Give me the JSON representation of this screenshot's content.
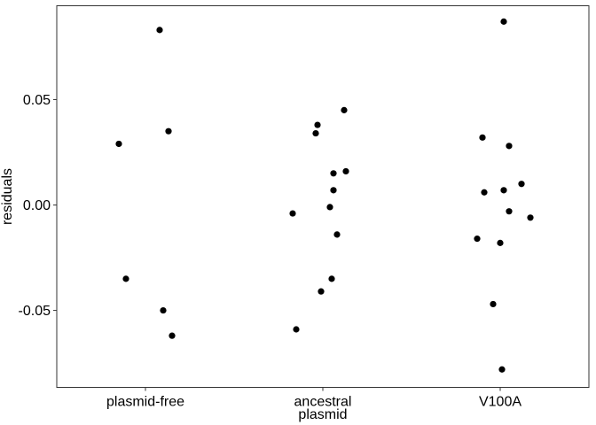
{
  "chart_data": {
    "type": "scatter",
    "xlabel": "plasmid",
    "ylabel": "residuals",
    "categories": [
      "plasmid-free",
      "ancestral",
      "V100A"
    ],
    "yticks": [
      0.05,
      0.0,
      -0.05
    ],
    "ytick_labels": [
      "0.05",
      "0.00",
      "-0.05"
    ],
    "ylim": [
      -0.0865,
      0.0945
    ],
    "grid": false,
    "point_color": "#000000",
    "points": [
      {
        "category": "plasmid-free",
        "jitter": 0.08,
        "y": 0.083
      },
      {
        "category": "plasmid-free",
        "jitter": -0.15,
        "y": 0.029
      },
      {
        "category": "plasmid-free",
        "jitter": 0.13,
        "y": 0.035
      },
      {
        "category": "plasmid-free",
        "jitter": -0.11,
        "y": -0.035
      },
      {
        "category": "plasmid-free",
        "jitter": 0.1,
        "y": -0.05
      },
      {
        "category": "plasmid-free",
        "jitter": 0.15,
        "y": -0.062
      },
      {
        "category": "ancestral",
        "jitter": 0.12,
        "y": 0.045
      },
      {
        "category": "ancestral",
        "jitter": -0.03,
        "y": 0.038
      },
      {
        "category": "ancestral",
        "jitter": -0.04,
        "y": 0.034
      },
      {
        "category": "ancestral",
        "jitter": 0.06,
        "y": 0.015
      },
      {
        "category": "ancestral",
        "jitter": 0.13,
        "y": 0.016
      },
      {
        "category": "ancestral",
        "jitter": 0.06,
        "y": 0.007
      },
      {
        "category": "ancestral",
        "jitter": -0.17,
        "y": -0.004
      },
      {
        "category": "ancestral",
        "jitter": 0.04,
        "y": -0.001
      },
      {
        "category": "ancestral",
        "jitter": 0.08,
        "y": -0.014
      },
      {
        "category": "ancestral",
        "jitter": 0.05,
        "y": -0.035
      },
      {
        "category": "ancestral",
        "jitter": -0.01,
        "y": -0.041
      },
      {
        "category": "ancestral",
        "jitter": -0.15,
        "y": -0.059
      },
      {
        "category": "V100A",
        "jitter": 0.02,
        "y": 0.087
      },
      {
        "category": "V100A",
        "jitter": -0.1,
        "y": 0.032
      },
      {
        "category": "V100A",
        "jitter": 0.05,
        "y": 0.028
      },
      {
        "category": "V100A",
        "jitter": 0.12,
        "y": 0.01
      },
      {
        "category": "V100A",
        "jitter": -0.09,
        "y": 0.006
      },
      {
        "category": "V100A",
        "jitter": 0.02,
        "y": 0.007
      },
      {
        "category": "V100A",
        "jitter": 0.05,
        "y": -0.003
      },
      {
        "category": "V100A",
        "jitter": 0.17,
        "y": -0.006
      },
      {
        "category": "V100A",
        "jitter": -0.13,
        "y": -0.016
      },
      {
        "category": "V100A",
        "jitter": 0.0,
        "y": -0.018
      },
      {
        "category": "V100A",
        "jitter": -0.04,
        "y": -0.047
      },
      {
        "category": "V100A",
        "jitter": 0.01,
        "y": -0.078
      }
    ]
  }
}
